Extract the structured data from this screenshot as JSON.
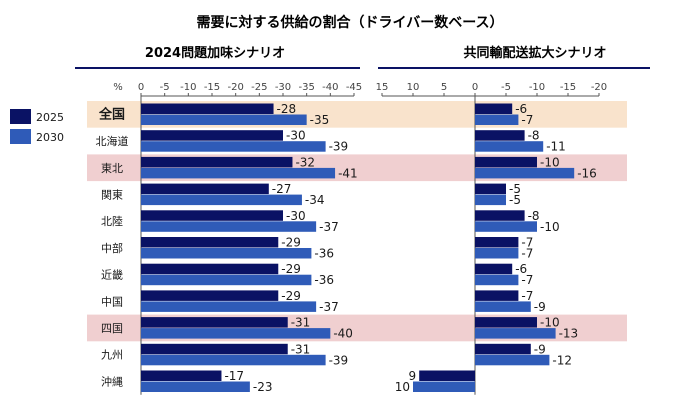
{
  "title": "需要に対する供給の割合（ドライバー数ベース）",
  "legend": [
    {
      "label": "2025",
      "color": "#0a1264"
    },
    {
      "label": "2030",
      "color": "#2f5bb8"
    }
  ],
  "highlight_colors": {
    "nation": "#f9e3cc",
    "region": "#f0cfd0"
  },
  "chart_data": [
    {
      "type": "bar",
      "title": "2024問題加味シナリオ",
      "unit_label": "%",
      "xlim": [
        0,
        -45
      ],
      "ticks": [
        0,
        -5,
        -10,
        -15,
        -20,
        -25,
        -30,
        -35,
        -40,
        -45
      ],
      "categories": [
        "全国",
        "北海道",
        "東北",
        "関東",
        "北陸",
        "中部",
        "近畿",
        "中国",
        "四国",
        "九州",
        "沖縄"
      ],
      "series": [
        {
          "name": "2025",
          "values": [
            -28,
            -30,
            -32,
            -27,
            -30,
            -29,
            -29,
            -29,
            -31,
            -31,
            -17
          ]
        },
        {
          "name": "2030",
          "values": [
            -35,
            -39,
            -41,
            -34,
            -37,
            -36,
            -36,
            -37,
            -40,
            -39,
            -23
          ]
        }
      ]
    },
    {
      "type": "bar",
      "title": "共同輸配送拡大シナリオ",
      "xlim": [
        15,
        -20
      ],
      "ticks": [
        15,
        10,
        5,
        0,
        -5,
        -10,
        -15,
        -20
      ],
      "categories": [
        "全国",
        "北海道",
        "東北",
        "関東",
        "北陸",
        "中部",
        "近畿",
        "中国",
        "四国",
        "九州",
        "沖縄"
      ],
      "series": [
        {
          "name": "2025",
          "values": [
            -6,
            -8,
            -10,
            -5,
            -8,
            -7,
            -6,
            -7,
            -10,
            -9,
            9
          ]
        },
        {
          "name": "2030",
          "values": [
            -7,
            -11,
            -16,
            -5,
            -10,
            -7,
            -7,
            -9,
            -13,
            -12,
            10
          ]
        }
      ]
    }
  ],
  "row_highlight": [
    "nation",
    "none",
    "region",
    "none",
    "none",
    "none",
    "none",
    "none",
    "region",
    "none",
    "none"
  ]
}
